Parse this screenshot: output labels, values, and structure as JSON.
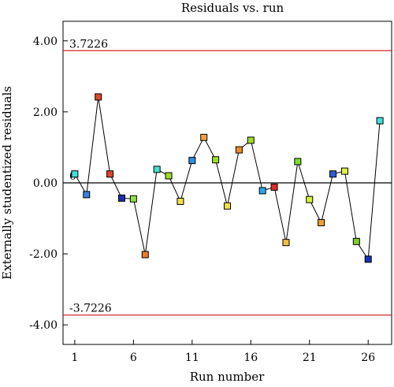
{
  "chart_data": {
    "type": "scatter",
    "title": "Residuals vs. run",
    "xlabel": "Run number",
    "ylabel": "Externally studentized residuals",
    "xlim": [
      0,
      28
    ],
    "ylim": [
      -4.55,
      4.55
    ],
    "xticks": [
      1,
      6,
      11,
      16,
      21,
      26
    ],
    "xtick_labels": [
      "1",
      "6",
      "11",
      "16",
      "21",
      "26"
    ],
    "yticks": [
      4.0,
      2.0,
      0.0,
      -2.0,
      -4.0
    ],
    "ytick_labels": [
      "4.00",
      "2.00",
      "0.00",
      "-2.00",
      "-4.00"
    ],
    "reference_lines": [
      {
        "value": 3.7226,
        "label": "3.7226",
        "color": "#d62728"
      },
      {
        "value": 0,
        "label": "0",
        "color": "#000000"
      },
      {
        "value": -3.7226,
        "label": "-3.7226",
        "color": "#d62728"
      }
    ],
    "series": [
      {
        "x": [
          1,
          2,
          3,
          4,
          5,
          6,
          7,
          8,
          9,
          10,
          11,
          12,
          13,
          14,
          15,
          16,
          17,
          18,
          19,
          20,
          21,
          22,
          23,
          24,
          25,
          26,
          27
        ],
        "values": [
          0.25,
          -0.33,
          2.42,
          0.25,
          -0.43,
          -0.45,
          -2.02,
          0.38,
          0.2,
          -0.52,
          0.63,
          1.28,
          0.65,
          -0.65,
          0.93,
          1.2,
          -0.22,
          -0.12,
          -1.68,
          0.6,
          -0.47,
          -1.12,
          0.25,
          0.33,
          -1.65,
          -2.15,
          1.75
        ],
        "colors": [
          "#40e0e0",
          "#3a7fe0",
          "#e04a2a",
          "#e0412a",
          "#1a2fb0",
          "#8ee04a",
          "#f07a2a",
          "#40e0c8",
          "#9ae02a",
          "#f0e04a",
          "#2a8fe0",
          "#f0a040",
          "#9ae02a",
          "#f0e04a",
          "#f08a2a",
          "#9ae02a",
          "#2aa8f0",
          "#e02a2a",
          "#f0c040",
          "#7ae02a",
          "#d8f040",
          "#f0a030",
          "#2a5fd0",
          "#e0f040",
          "#7ad02a",
          "#1a2fb0",
          "#40e0e0"
        ]
      }
    ],
    "grid": false
  }
}
